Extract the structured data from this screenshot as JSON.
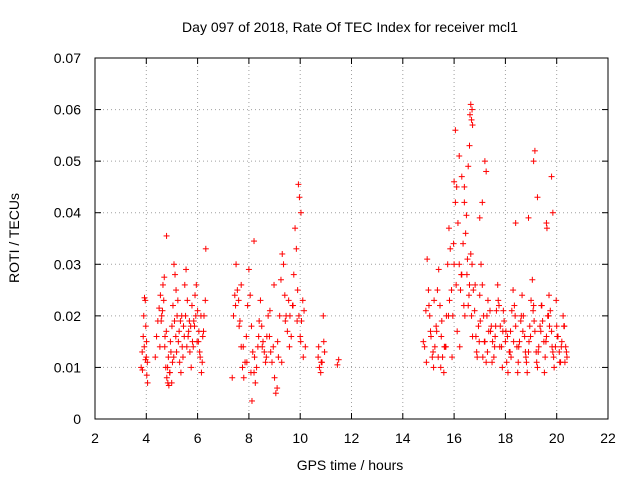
{
  "chart_data": {
    "type": "scatter",
    "title": "Day 097 of 2018, Rate Of TEC Index for receiver mcl1",
    "xlabel": "GPS time / hours",
    "ylabel": "ROTI / TECUs",
    "xlim": [
      2,
      22
    ],
    "ylim": [
      0,
      0.07
    ],
    "x_ticks": [
      2,
      4,
      6,
      8,
      10,
      12,
      14,
      16,
      18,
      20,
      22
    ],
    "x_tick_labels": [
      "2",
      "4",
      "6",
      "8",
      "10",
      "12",
      "14",
      "16",
      "18",
      "20",
      "22"
    ],
    "y_ticks": [
      0,
      0.01,
      0.02,
      0.03,
      0.04,
      0.05,
      0.06,
      0.07
    ],
    "y_tick_labels": [
      "0",
      "0.01",
      "0.02",
      "0.03",
      "0.04",
      "0.05",
      "0.06",
      "0.07"
    ],
    "grid": true,
    "marker": "+",
    "marker_color": "#ff0000",
    "series": [
      {
        "name": "ROTI",
        "x": [
          3.8,
          3.84,
          3.88,
          3.9,
          3.93,
          3.96,
          3.98,
          4.0,
          4.02,
          4.05,
          3.85,
          3.92,
          3.97,
          4.01,
          4.04,
          4.35,
          4.4,
          4.45,
          4.5,
          4.55,
          4.6,
          4.65,
          4.7,
          4.72,
          4.76,
          4.8,
          4.84,
          4.88,
          4.92,
          4.96,
          5.0,
          5.04,
          5.08,
          5.12,
          5.16,
          5.2,
          5.25,
          5.3,
          5.35,
          5.4,
          5.45,
          5.5,
          5.55,
          5.6,
          5.65,
          5.7,
          5.75,
          5.8,
          5.85,
          5.9,
          5.95,
          6.0,
          6.05,
          6.1,
          6.15,
          6.2,
          6.25,
          6.3,
          4.58,
          4.68,
          4.78,
          4.86,
          4.94,
          5.02,
          5.1,
          5.18,
          5.28,
          5.38,
          5.48,
          5.58,
          5.68,
          5.78,
          5.88,
          5.98,
          6.08,
          6.18,
          4.53,
          4.63,
          4.73,
          4.83,
          4.91,
          4.99,
          5.07,
          5.15,
          5.23,
          5.33,
          5.43,
          5.53,
          5.63,
          5.73,
          5.83,
          5.93,
          6.03,
          6.13,
          6.23,
          4.79,
          6.32,
          7.35,
          7.4,
          7.45,
          7.5,
          7.55,
          7.6,
          7.65,
          7.7,
          7.75,
          7.8,
          7.85,
          7.9,
          7.95,
          8.0,
          8.05,
          8.1,
          8.15,
          8.2,
          8.25,
          8.3,
          8.35,
          8.4,
          8.45,
          8.5,
          8.55,
          8.6,
          8.65,
          8.7,
          8.75,
          8.8,
          8.85,
          8.9,
          8.95,
          9.0,
          9.05,
          9.1,
          9.15,
          9.2,
          9.25,
          9.3,
          9.35,
          9.4,
          9.45,
          9.5,
          9.55,
          9.6,
          9.65,
          9.7,
          9.75,
          9.8,
          9.85,
          9.9,
          9.95,
          10.0,
          10.05,
          10.1,
          10.15,
          10.2,
          7.48,
          7.62,
          7.78,
          7.92,
          8.08,
          8.22,
          8.38,
          8.52,
          8.68,
          8.82,
          8.98,
          9.12,
          9.28,
          9.42,
          9.58,
          9.72,
          9.88,
          10.02,
          10.12,
          9.93,
          9.97,
          10.03,
          7.7,
          8.12,
          8.2,
          10.7,
          10.75,
          10.8,
          10.85,
          10.9,
          10.95,
          10.72,
          10.82,
          10.92,
          11.45,
          11.5,
          14.8,
          14.85,
          14.9,
          14.95,
          15.0,
          15.05,
          15.1,
          15.15,
          15.2,
          15.25,
          15.3,
          15.35,
          15.4,
          15.45,
          15.5,
          15.55,
          15.6,
          15.65,
          15.7,
          15.75,
          15.8,
          15.85,
          15.9,
          15.95,
          16.0,
          16.05,
          16.1,
          16.15,
          16.2,
          16.25,
          16.3,
          16.35,
          16.4,
          16.45,
          16.5,
          16.55,
          16.6,
          16.65,
          16.7,
          16.75,
          16.8,
          16.85,
          16.9,
          16.95,
          17.0,
          17.05,
          17.1,
          17.15,
          17.2,
          17.25,
          17.3,
          17.35,
          17.4,
          17.45,
          17.5,
          17.55,
          17.6,
          17.65,
          17.7,
          17.75,
          17.8,
          17.85,
          17.9,
          17.95,
          18.0,
          18.05,
          18.1,
          18.15,
          18.2,
          18.25,
          18.3,
          18.35,
          18.4,
          18.45,
          18.5,
          18.55,
          18.6,
          18.65,
          18.7,
          18.75,
          18.8,
          18.85,
          18.9,
          18.95,
          19.0,
          19.05,
          19.1,
          19.15,
          19.2,
          19.25,
          19.3,
          19.35,
          19.4,
          19.45,
          19.5,
          19.55,
          19.6,
          19.65,
          19.7,
          19.75,
          19.8,
          19.85,
          19.9,
          19.95,
          20.0,
          20.05,
          20.1,
          20.15,
          20.2,
          20.25,
          20.3,
          20.35,
          20.4,
          14.92,
          15.08,
          15.22,
          15.38,
          15.52,
          15.68,
          15.82,
          15.98,
          16.12,
          16.28,
          16.42,
          16.58,
          16.72,
          16.88,
          17.02,
          17.18,
          17.32,
          17.48,
          17.62,
          17.78,
          17.92,
          18.08,
          18.22,
          18.38,
          18.52,
          18.68,
          18.82,
          18.98,
          19.12,
          19.28,
          19.42,
          19.58,
          19.72,
          19.88,
          20.02,
          20.18,
          20.32,
          15.02,
          15.18,
          15.32,
          15.48,
          15.62,
          15.78,
          15.92,
          16.08,
          16.22,
          16.38,
          16.52,
          16.68,
          16.82,
          16.98,
          17.12,
          17.28,
          17.42,
          17.58,
          17.72,
          17.88,
          18.02,
          18.18,
          18.32,
          18.48,
          18.62,
          18.78,
          18.92,
          19.08,
          19.22,
          19.38,
          19.52,
          19.68,
          19.82,
          19.98,
          20.12,
          20.28,
          20.38,
          16.0,
          16.05,
          16.2,
          16.3,
          16.55,
          16.6,
          16.62,
          16.65,
          16.68,
          16.7,
          16.72,
          17.2,
          17.25,
          19.1,
          19.15,
          19.25,
          19.8,
          19.85,
          19.6,
          19.62,
          16.4,
          16.48,
          17.0,
          17.1,
          18.4,
          18.9
        ],
        "y": [
          0.01,
          0.013,
          0.016,
          0.02,
          0.0235,
          0.023,
          0.018,
          0.012,
          0.0085,
          0.007,
          0.0095,
          0.014,
          0.0115,
          0.015,
          0.011,
          0.012,
          0.016,
          0.019,
          0.0215,
          0.024,
          0.02,
          0.026,
          0.0275,
          0.014,
          0.01,
          0.008,
          0.007,
          0.0065,
          0.009,
          0.013,
          0.018,
          0.022,
          0.03,
          0.028,
          0.025,
          0.02,
          0.015,
          0.011,
          0.009,
          0.014,
          0.018,
          0.026,
          0.029,
          0.023,
          0.017,
          0.013,
          0.01,
          0.015,
          0.019,
          0.024,
          0.026,
          0.021,
          0.017,
          0.012,
          0.009,
          0.016,
          0.02,
          0.023,
          0.019,
          0.023,
          0.017,
          0.012,
          0.015,
          0.011,
          0.019,
          0.013,
          0.017,
          0.02,
          0.016,
          0.014,
          0.019,
          0.022,
          0.018,
          0.015,
          0.013,
          0.011,
          0.014,
          0.021,
          0.016,
          0.01,
          0.009,
          0.007,
          0.012,
          0.016,
          0.023,
          0.019,
          0.012,
          0.02,
          0.016,
          0.018,
          0.014,
          0.02,
          0.015,
          0.02,
          0.017,
          0.0355,
          0.033,
          0.008,
          0.02,
          0.024,
          0.03,
          0.025,
          0.023,
          0.019,
          0.014,
          0.01,
          0.008,
          0.011,
          0.016,
          0.022,
          0.029,
          0.024,
          0.018,
          0.013,
          0.009,
          0.007,
          0.01,
          0.014,
          0.019,
          0.023,
          0.018,
          0.015,
          0.013,
          0.011,
          0.016,
          0.02,
          0.016,
          0.013,
          0.011,
          0.014,
          0.008,
          0.005,
          0.006,
          0.012,
          0.02,
          0.027,
          0.032,
          0.03,
          0.024,
          0.02,
          0.017,
          0.023,
          0.02,
          0.016,
          0.022,
          0.028,
          0.037,
          0.033,
          0.025,
          0.02,
          0.016,
          0.019,
          0.023,
          0.021,
          0.014,
          0.022,
          0.018,
          0.014,
          0.011,
          0.009,
          0.012,
          0.016,
          0.014,
          0.012,
          0.021,
          0.026,
          0.015,
          0.011,
          0.019,
          0.014,
          0.022,
          0.019,
          0.015,
          0.012,
          0.0455,
          0.043,
          0.04,
          0.026,
          0.0035,
          0.0345,
          0.012,
          0.01,
          0.009,
          0.011,
          0.02,
          0.013,
          0.014,
          0.011,
          0.015,
          0.0105,
          0.0115,
          0.015,
          0.014,
          0.021,
          0.031,
          0.025,
          0.02,
          0.016,
          0.012,
          0.01,
          0.014,
          0.018,
          0.025,
          0.029,
          0.022,
          0.016,
          0.012,
          0.009,
          0.014,
          0.02,
          0.03,
          0.037,
          0.033,
          0.025,
          0.02,
          0.03,
          0.042,
          0.045,
          0.038,
          0.03,
          0.025,
          0.028,
          0.034,
          0.042,
          0.036,
          0.028,
          0.022,
          0.026,
          0.032,
          0.03,
          0.025,
          0.021,
          0.016,
          0.012,
          0.018,
          0.024,
          0.03,
          0.026,
          0.02,
          0.015,
          0.011,
          0.013,
          0.017,
          0.021,
          0.018,
          0.015,
          0.012,
          0.016,
          0.021,
          0.026,
          0.022,
          0.018,
          0.014,
          0.017,
          0.019,
          0.015,
          0.011,
          0.009,
          0.013,
          0.017,
          0.021,
          0.025,
          0.022,
          0.018,
          0.014,
          0.011,
          0.015,
          0.019,
          0.024,
          0.02,
          0.016,
          0.012,
          0.009,
          0.013,
          0.018,
          0.023,
          0.027,
          0.022,
          0.017,
          0.013,
          0.01,
          0.014,
          0.018,
          0.022,
          0.019,
          0.015,
          0.012,
          0.016,
          0.02,
          0.024,
          0.021,
          0.017,
          0.013,
          0.01,
          0.014,
          0.018,
          0.016,
          0.013,
          0.011,
          0.015,
          0.02,
          0.018,
          0.014,
          0.012,
          0.011,
          0.017,
          0.023,
          0.012,
          0.019,
          0.014,
          0.023,
          0.034,
          0.017,
          0.028,
          0.02,
          0.024,
          0.016,
          0.013,
          0.019,
          0.015,
          0.023,
          0.011,
          0.018,
          0.014,
          0.021,
          0.016,
          0.012,
          0.02,
          0.014,
          0.017,
          0.011,
          0.016,
          0.019,
          0.013,
          0.022,
          0.015,
          0.018,
          0.012,
          0.016,
          0.014,
          0.011,
          0.022,
          0.013,
          0.017,
          0.01,
          0.014,
          0.02,
          0.012,
          0.026,
          0.014,
          0.022,
          0.031,
          0.02,
          0.026,
          0.015,
          0.012,
          0.02,
          0.017,
          0.014,
          0.023,
          0.01,
          0.017,
          0.013,
          0.015,
          0.009,
          0.02,
          0.013,
          0.015,
          0.021,
          0.011,
          0.017,
          0.009,
          0.02,
          0.014,
          0.023,
          0.011,
          0.018,
          0.013,
          0.046,
          0.056,
          0.051,
          0.047,
          0.049,
          0.053,
          0.059,
          0.061,
          0.058,
          0.06,
          0.057,
          0.05,
          0.048,
          0.05,
          0.052,
          0.043,
          0.047,
          0.04,
          0.038,
          0.037,
          0.045,
          0.0395,
          0.039,
          0.042,
          0.038,
          0.039
        ]
      }
    ]
  }
}
